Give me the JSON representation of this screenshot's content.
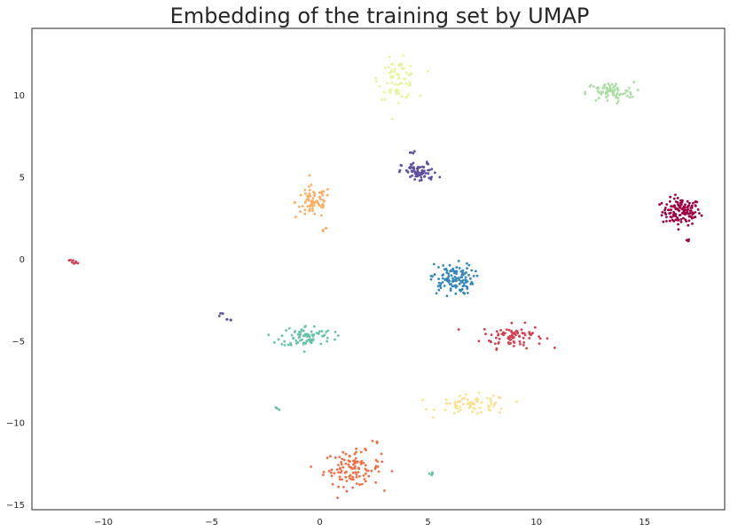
{
  "chart_data": {
    "type": "scatter",
    "title": "Embedding of the training set by UMAP",
    "xlabel": "",
    "ylabel": "",
    "xlim": [
      -13.3,
      18.7
    ],
    "ylim": [
      -15.3,
      14.1
    ],
    "xticks": [
      -10,
      -5,
      0,
      5,
      10,
      15
    ],
    "yticks": [
      -15,
      -10,
      -5,
      0,
      5,
      10
    ],
    "xtick_labels": [
      "−10",
      "−5",
      "0",
      "5",
      "10",
      "15"
    ],
    "ytick_labels": [
      "−15",
      "−10",
      "−5",
      "0",
      "5",
      "10"
    ],
    "grid": false,
    "legend": "none",
    "clusters": [
      {
        "color": "#9e0142",
        "cx": 16.7,
        "cy": 2.9,
        "rx": 0.8,
        "ry": 0.75,
        "n": 130,
        "extra": [
          [
            17.0,
            1.2
          ]
        ]
      },
      {
        "color": "#d53e4f",
        "cx": 8.9,
        "cy": -4.7,
        "rx": 1.3,
        "ry": 0.65,
        "n": 80,
        "extra": [
          [
            -11.5,
            -0.1
          ],
          [
            -11.3,
            -0.2
          ]
        ]
      },
      {
        "color": "#f46d43",
        "cx": 1.5,
        "cy": -12.8,
        "rx": 1.2,
        "ry": 0.95,
        "n": 110,
        "extra": [
          [
            2.5,
            -11.2
          ]
        ]
      },
      {
        "color": "#fdae61",
        "cx": -0.3,
        "cy": 3.5,
        "rx": 0.75,
        "ry": 0.9,
        "n": 75,
        "extra": [
          [
            0.2,
            1.8
          ]
        ]
      },
      {
        "color": "#fee08b",
        "cx": 7.1,
        "cy": -8.9,
        "rx": 1.5,
        "ry": 0.55,
        "n": 70,
        "extra": []
      },
      {
        "color": "#e6f598",
        "cx": 3.6,
        "cy": 11.0,
        "rx": 0.8,
        "ry": 1.1,
        "n": 75,
        "extra": []
      },
      {
        "color": "#abdda4",
        "cx": 13.4,
        "cy": 10.2,
        "rx": 1.0,
        "ry": 0.55,
        "n": 80,
        "extra": []
      },
      {
        "color": "#66c2a5",
        "cx": -0.6,
        "cy": -4.7,
        "rx": 1.1,
        "ry": 0.6,
        "n": 85,
        "extra": [
          [
            -1.9,
            -9.1
          ],
          [
            5.2,
            -13.1
          ]
        ]
      },
      {
        "color": "#3288bd",
        "cx": 6.1,
        "cy": -1.2,
        "rx": 0.9,
        "ry": 0.85,
        "n": 120,
        "extra": []
      },
      {
        "color": "#5e4fa2",
        "cx": 4.6,
        "cy": 5.3,
        "rx": 0.75,
        "ry": 0.55,
        "n": 75,
        "extra": [
          [
            -4.6,
            -3.4
          ],
          [
            -4.2,
            -3.7
          ],
          [
            4.3,
            6.5
          ]
        ]
      }
    ]
  }
}
